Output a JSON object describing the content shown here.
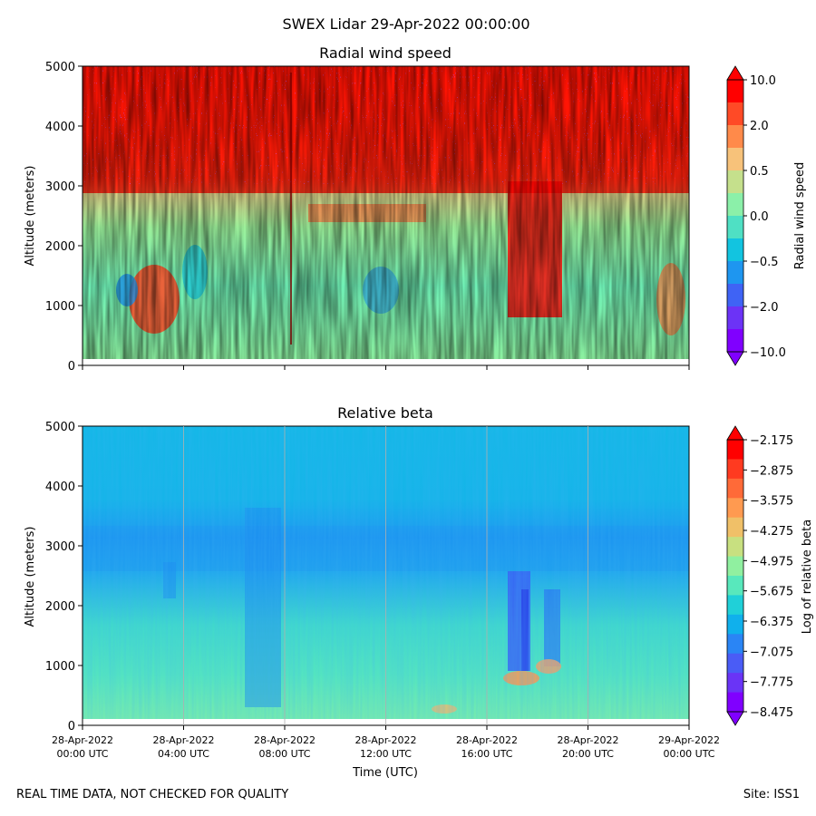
{
  "figure": {
    "title": "SWEX Lidar 29-Apr-2022 00:00:00",
    "footer_left": "REAL TIME DATA, NOT CHECKED FOR QUALITY",
    "footer_right": "Site: ISS1"
  },
  "chart_data": [
    {
      "type": "heatmap",
      "title": "Radial wind speed",
      "ylabel": "Altitude (meters)",
      "xlabel": "",
      "ylim": [
        0,
        5000
      ],
      "yticks": [
        "0",
        "1000",
        "2000",
        "3000",
        "4000",
        "5000"
      ],
      "x_range_hours": [
        0,
        24
      ],
      "x_tick_hours": [
        0,
        4,
        8,
        12,
        16,
        20,
        24
      ],
      "x_tick_labels": [],
      "colorbar": {
        "label": "Radial wind speed",
        "tick_labels": [
          "10.0",
          "2.0",
          "0.5",
          "0.0",
          "−0.5",
          "−2.0",
          "−10.0"
        ],
        "colors": [
          "#ff0000",
          "#ff4a26",
          "#ff8a4a",
          "#f7c27a",
          "#c5e08c",
          "#8bf0a9",
          "#4fe0c4",
          "#12c4e0",
          "#1e96f0",
          "#3f63f5",
          "#6c33f6",
          "#8000ff"
        ],
        "extend_top_color": "#ff0000",
        "extend_bottom_color": "#8000ff"
      }
    },
    {
      "type": "heatmap",
      "title": "Relative beta",
      "ylabel": "Altitude (meters)",
      "xlabel": "Time (UTC)",
      "ylim": [
        0,
        5000
      ],
      "yticks": [
        "0",
        "1000",
        "2000",
        "3000",
        "4000",
        "5000"
      ],
      "x_range_hours": [
        0,
        24
      ],
      "x_tick_hours": [
        0,
        4,
        8,
        12,
        16,
        20,
        24
      ],
      "x_tick_labels": [
        [
          "28-Apr-2022",
          "00:00 UTC"
        ],
        [
          "28-Apr-2022",
          "04:00 UTC"
        ],
        [
          "28-Apr-2022",
          "08:00 UTC"
        ],
        [
          "28-Apr-2022",
          "12:00 UTC"
        ],
        [
          "28-Apr-2022",
          "16:00 UTC"
        ],
        [
          "28-Apr-2022",
          "20:00 UTC"
        ],
        [
          "29-Apr-2022",
          "00:00 UTC"
        ]
      ],
      "colorbar": {
        "label": "Log of relative beta",
        "tick_labels": [
          "−2.175",
          "−2.875",
          "−3.575",
          "−4.275",
          "−4.975",
          "−5.675",
          "−6.375",
          "−7.075",
          "−7.775",
          "−8.475"
        ],
        "colors": [
          "#ff0000",
          "#ff3a20",
          "#ff6a38",
          "#ff9a50",
          "#f0c068",
          "#c8e080",
          "#90f0a0",
          "#58e8bc",
          "#20d0d8",
          "#10b0ec",
          "#2a85f5",
          "#4a5cf6",
          "#6a34f6",
          "#8000ff"
        ],
        "extend_top_color": "#ff0000",
        "extend_bottom_color": "#8000ff"
      }
    }
  ]
}
